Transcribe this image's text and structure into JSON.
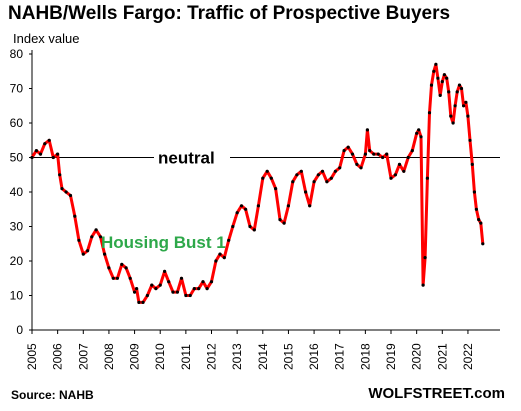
{
  "chart_data": {
    "type": "line",
    "title": "NAHB/Wells Fargo: Traffic of Prospective Buyers",
    "ylabel": "Index value",
    "xlabel": "",
    "ylim": [
      0,
      80
    ],
    "xlim": [
      2005,
      2023.25
    ],
    "yticks": [
      0,
      10,
      20,
      30,
      40,
      50,
      60,
      70,
      80
    ],
    "xticks": [
      "2005",
      "2006",
      "2007",
      "2008",
      "2009",
      "2010",
      "2011",
      "2012",
      "2013",
      "2014",
      "2015",
      "2016",
      "2017",
      "2018",
      "2019",
      "2020",
      "2021",
      "2022"
    ],
    "grid": false,
    "series": [
      {
        "color": "#ff0000",
        "marker_color": "#000000",
        "points": [
          [
            2005.0,
            50
          ],
          [
            2005.17,
            52
          ],
          [
            2005.33,
            51
          ],
          [
            2005.5,
            54
          ],
          [
            2005.67,
            55
          ],
          [
            2005.83,
            50
          ],
          [
            2006.0,
            51
          ],
          [
            2006.08,
            45
          ],
          [
            2006.17,
            41
          ],
          [
            2006.33,
            40
          ],
          [
            2006.5,
            39
          ],
          [
            2006.67,
            33
          ],
          [
            2006.83,
            26
          ],
          [
            2007.0,
            22
          ],
          [
            2007.17,
            23
          ],
          [
            2007.33,
            27
          ],
          [
            2007.5,
            29
          ],
          [
            2007.67,
            27
          ],
          [
            2007.83,
            22
          ],
          [
            2008.0,
            18
          ],
          [
            2008.17,
            15
          ],
          [
            2008.33,
            15
          ],
          [
            2008.5,
            19
          ],
          [
            2008.67,
            18
          ],
          [
            2008.83,
            15
          ],
          [
            2009.0,
            11
          ],
          [
            2009.08,
            12
          ],
          [
            2009.17,
            8
          ],
          [
            2009.33,
            8
          ],
          [
            2009.5,
            10
          ],
          [
            2009.67,
            13
          ],
          [
            2009.83,
            12
          ],
          [
            2010.0,
            13
          ],
          [
            2010.17,
            17
          ],
          [
            2010.33,
            14
          ],
          [
            2010.5,
            11
          ],
          [
            2010.67,
            11
          ],
          [
            2010.83,
            15
          ],
          [
            2011.0,
            10
          ],
          [
            2011.17,
            10
          ],
          [
            2011.33,
            12
          ],
          [
            2011.5,
            12
          ],
          [
            2011.67,
            14
          ],
          [
            2011.83,
            12
          ],
          [
            2012.0,
            14
          ],
          [
            2012.17,
            20
          ],
          [
            2012.33,
            22
          ],
          [
            2012.5,
            21
          ],
          [
            2012.67,
            26
          ],
          [
            2012.83,
            30
          ],
          [
            2013.0,
            34
          ],
          [
            2013.17,
            36
          ],
          [
            2013.33,
            35
          ],
          [
            2013.5,
            30
          ],
          [
            2013.67,
            29
          ],
          [
            2013.83,
            36
          ],
          [
            2014.0,
            44
          ],
          [
            2014.17,
            46
          ],
          [
            2014.33,
            44
          ],
          [
            2014.5,
            41
          ],
          [
            2014.67,
            32
          ],
          [
            2014.83,
            31
          ],
          [
            2015.0,
            36
          ],
          [
            2015.17,
            43
          ],
          [
            2015.33,
            45
          ],
          [
            2015.5,
            46
          ],
          [
            2015.67,
            40
          ],
          [
            2015.83,
            36
          ],
          [
            2016.0,
            43
          ],
          [
            2016.17,
            45
          ],
          [
            2016.33,
            46
          ],
          [
            2016.5,
            43
          ],
          [
            2016.67,
            44
          ],
          [
            2016.83,
            46
          ],
          [
            2017.0,
            47
          ],
          [
            2017.17,
            52
          ],
          [
            2017.33,
            53
          ],
          [
            2017.5,
            51
          ],
          [
            2017.67,
            48
          ],
          [
            2017.83,
            47
          ],
          [
            2018.0,
            51
          ],
          [
            2018.08,
            58
          ],
          [
            2018.17,
            52
          ],
          [
            2018.33,
            51
          ],
          [
            2018.5,
            51
          ],
          [
            2018.67,
            50
          ],
          [
            2018.83,
            51
          ],
          [
            2019.0,
            44
          ],
          [
            2019.17,
            45
          ],
          [
            2019.33,
            48
          ],
          [
            2019.5,
            46
          ],
          [
            2019.67,
            50
          ],
          [
            2019.83,
            52
          ],
          [
            2020.0,
            57
          ],
          [
            2020.08,
            58
          ],
          [
            2020.17,
            56
          ],
          [
            2020.25,
            13
          ],
          [
            2020.33,
            21
          ],
          [
            2020.42,
            44
          ],
          [
            2020.5,
            63
          ],
          [
            2020.58,
            71
          ],
          [
            2020.67,
            75
          ],
          [
            2020.75,
            77
          ],
          [
            2020.83,
            73
          ],
          [
            2020.92,
            68
          ],
          [
            2021.0,
            72
          ],
          [
            2021.08,
            74
          ],
          [
            2021.17,
            73
          ],
          [
            2021.25,
            69
          ],
          [
            2021.33,
            62
          ],
          [
            2021.42,
            60
          ],
          [
            2021.5,
            65
          ],
          [
            2021.58,
            69
          ],
          [
            2021.67,
            71
          ],
          [
            2021.75,
            70
          ],
          [
            2021.83,
            65
          ],
          [
            2021.92,
            66
          ],
          [
            2022.0,
            62
          ],
          [
            2022.08,
            55
          ],
          [
            2022.17,
            48
          ],
          [
            2022.25,
            40
          ],
          [
            2022.33,
            35
          ],
          [
            2022.42,
            32
          ],
          [
            2022.5,
            31
          ],
          [
            2022.58,
            25
          ]
        ]
      }
    ],
    "reference_line": {
      "y": 50,
      "label": "neutral",
      "color": "#000000"
    },
    "annotations": [
      {
        "text": "Housing Bust 1",
        "color": "#2ea84a"
      }
    ]
  },
  "footer": {
    "source": "Source: NAHB",
    "brand": "WOLFSTREET.com"
  }
}
